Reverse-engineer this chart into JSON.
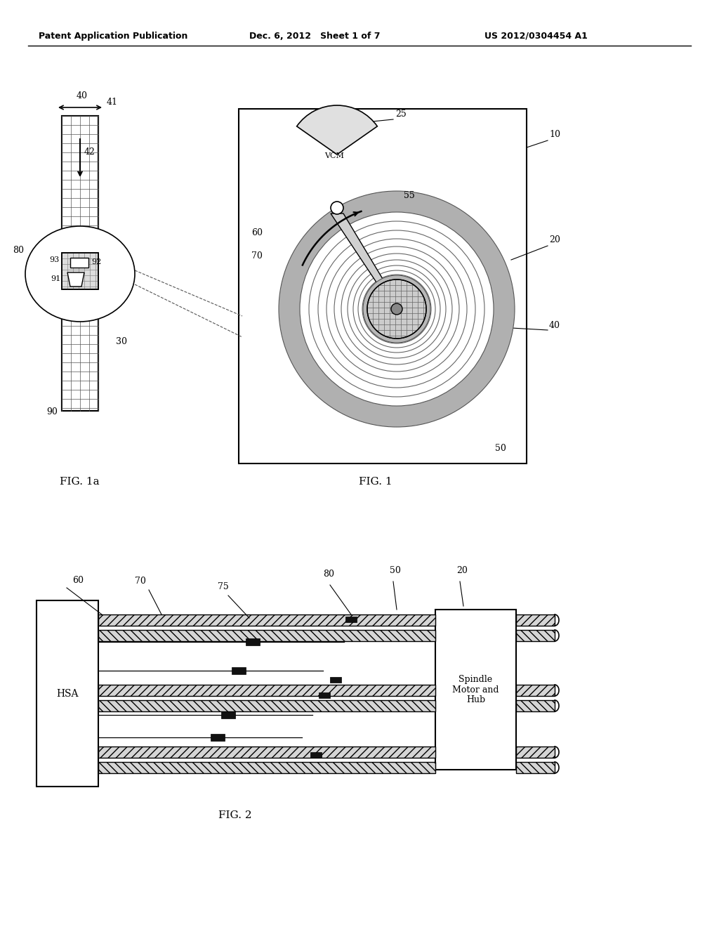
{
  "bg_color": "#ffffff",
  "header_left": "Patent Application Publication",
  "header_mid": "Dec. 6, 2012   Sheet 1 of 7",
  "header_right": "US 2012/0304454 A1",
  "fig1a_label": "FIG. 1a",
  "fig1_label": "FIG. 1",
  "fig2_label": "FIG. 2",
  "line_color": "#000000"
}
